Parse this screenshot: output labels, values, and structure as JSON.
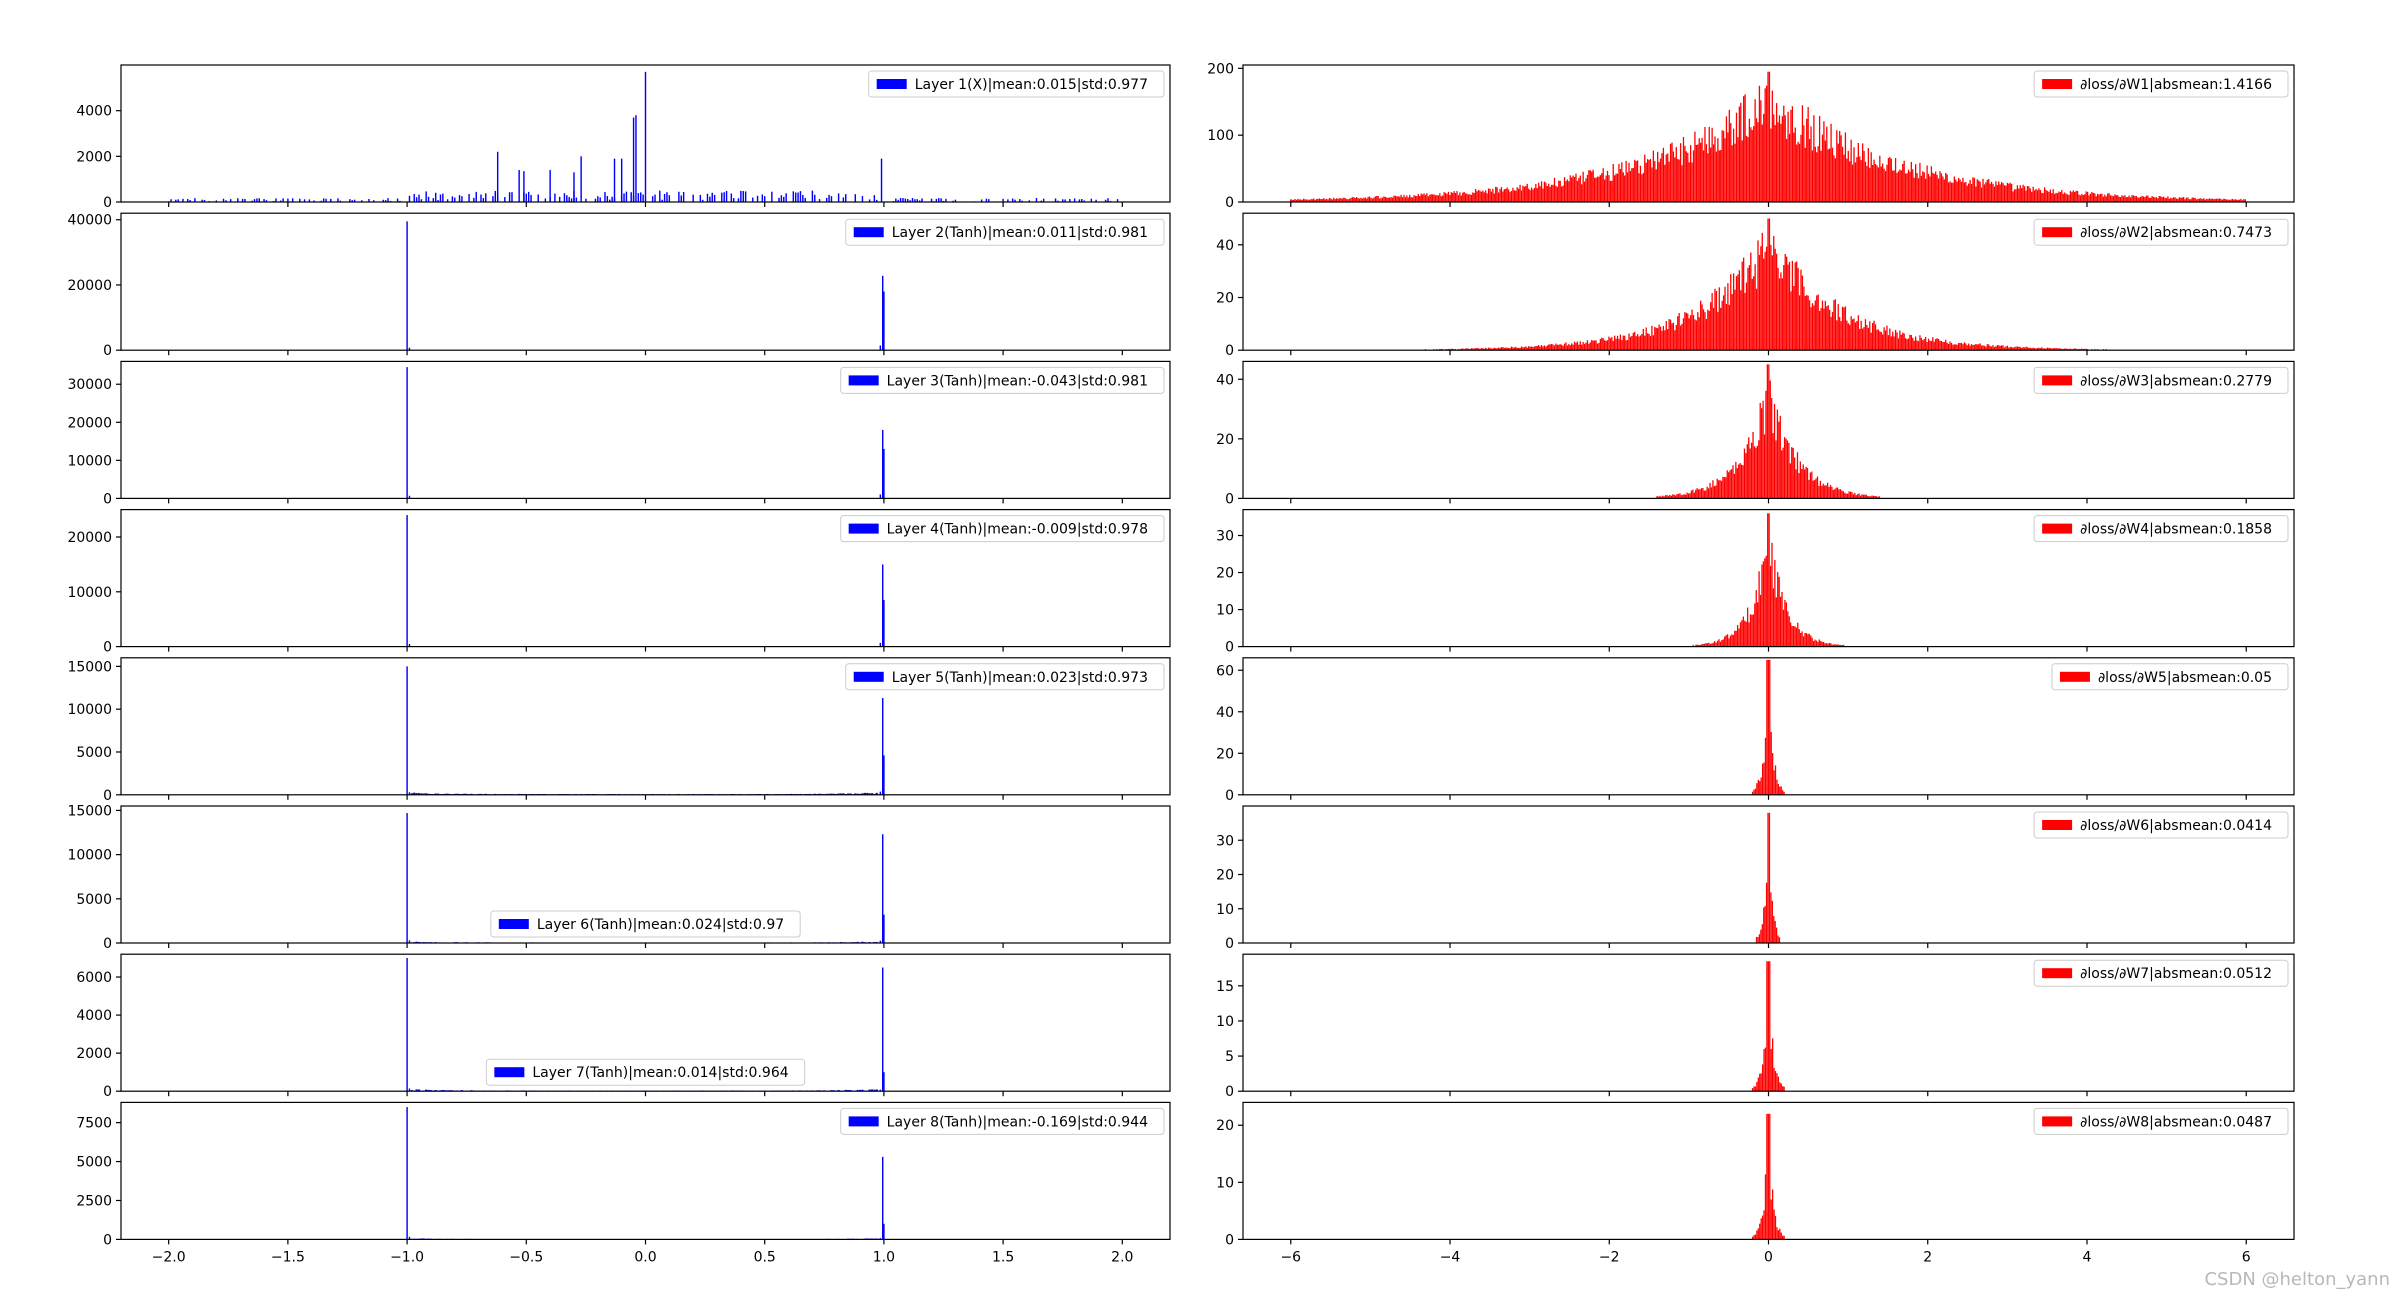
{
  "watermark": "CSDN @helton_yann",
  "colors": {
    "activation": "#0000ff",
    "gradient": "#ff0000",
    "axis": "#000000"
  },
  "chart_data": [
    {
      "type": "bar",
      "title": "",
      "legend": "Layer 1(X)|mean:0.015|std:0.977",
      "legend_position": "upper-right",
      "color": "#0000ff",
      "xlim": [
        -2.2,
        2.2
      ],
      "ylim": [
        0,
        6000
      ],
      "yticks": [
        0,
        2000,
        4000
      ],
      "yticklabels": [
        "0",
        "2000",
        "4000"
      ],
      "grid": false,
      "distribution": {
        "kind": "input",
        "spikes": [
          [
            0.0,
            5700
          ],
          [
            -0.05,
            3700
          ],
          [
            -0.04,
            3800
          ],
          [
            -0.1,
            1900
          ],
          [
            -0.13,
            1900
          ],
          [
            0.99,
            1900
          ],
          [
            -0.62,
            2200
          ],
          [
            -0.27,
            2000
          ],
          [
            -0.4,
            1400
          ],
          [
            -0.53,
            1400
          ],
          [
            -0.51,
            1350
          ],
          [
            -0.3,
            1300
          ]
        ]
      }
    },
    {
      "type": "bar",
      "title": "",
      "legend": "Layer 2(Tanh)|mean:0.011|std:0.981",
      "legend_position": "upper-right",
      "color": "#0000ff",
      "xlim": [
        -2.2,
        2.2
      ],
      "ylim": [
        0,
        42000
      ],
      "yticks": [
        0,
        20000,
        40000
      ],
      "yticklabels": [
        "0",
        "20000",
        "40000"
      ],
      "grid": false,
      "distribution": {
        "kind": "saturated",
        "neg_peak": 39500,
        "pos_peak": 22800,
        "pos_second": 18000,
        "floor": 0
      }
    },
    {
      "type": "bar",
      "title": "",
      "legend": "Layer 3(Tanh)|mean:-0.043|std:0.981",
      "legend_position": "upper-right",
      "color": "#0000ff",
      "xlim": [
        -2.2,
        2.2
      ],
      "ylim": [
        0,
        36000
      ],
      "yticks": [
        0,
        10000,
        20000,
        30000
      ],
      "yticklabels": [
        "0",
        "10000",
        "20000",
        "30000"
      ],
      "grid": false,
      "distribution": {
        "kind": "saturated",
        "neg_peak": 34500,
        "pos_peak": 18000,
        "pos_second": 13000,
        "floor": 0
      }
    },
    {
      "type": "bar",
      "title": "",
      "legend": "Layer 4(Tanh)|mean:-0.009|std:0.978",
      "legend_position": "upper-right",
      "color": "#0000ff",
      "xlim": [
        -2.2,
        2.2
      ],
      "ylim": [
        0,
        25000
      ],
      "yticks": [
        0,
        10000,
        20000
      ],
      "yticklabels": [
        "0",
        "10000",
        "20000"
      ],
      "grid": false,
      "distribution": {
        "kind": "saturated",
        "neg_peak": 24000,
        "pos_peak": 15000,
        "pos_second": 8500,
        "floor": 0
      }
    },
    {
      "type": "bar",
      "title": "",
      "legend": "Layer 5(Tanh)|mean:0.023|std:0.973",
      "legend_position": "upper-right",
      "color": "#0000ff",
      "xlim": [
        -2.2,
        2.2
      ],
      "ylim": [
        0,
        16000
      ],
      "yticks": [
        0,
        5000,
        10000,
        15000
      ],
      "yticklabels": [
        "0",
        "5000",
        "10000",
        "15000"
      ],
      "grid": false,
      "distribution": {
        "kind": "saturated",
        "neg_peak": 15000,
        "pos_peak": 11300,
        "pos_second": 4600,
        "floor": 150
      }
    },
    {
      "type": "bar",
      "title": "",
      "legend": "Layer 6(Tanh)|mean:0.024|std:0.97",
      "legend_position": "lower-center",
      "color": "#0000ff",
      "xlim": [
        -2.2,
        2.2
      ],
      "ylim": [
        0,
        15500
      ],
      "yticks": [
        0,
        5000,
        10000,
        15000
      ],
      "yticklabels": [
        "0",
        "5000",
        "10000",
        "15000"
      ],
      "grid": false,
      "distribution": {
        "kind": "saturated",
        "neg_peak": 14700,
        "pos_peak": 12300,
        "pos_second": 3200,
        "floor": 100
      }
    },
    {
      "type": "bar",
      "title": "",
      "legend": "Layer 7(Tanh)|mean:0.014|std:0.964",
      "legend_position": "lower-center",
      "color": "#0000ff",
      "xlim": [
        -2.2,
        2.2
      ],
      "ylim": [
        0,
        7200
      ],
      "yticks": [
        0,
        2000,
        4000,
        6000
      ],
      "yticklabels": [
        "0",
        "2000",
        "4000",
        "6000"
      ],
      "grid": false,
      "distribution": {
        "kind": "saturated",
        "neg_peak": 7000,
        "pos_peak": 6500,
        "pos_second": 1000,
        "floor": 60
      }
    },
    {
      "type": "bar",
      "title": "",
      "legend": "Layer 8(Tanh)|mean:-0.169|std:0.944",
      "legend_position": "upper-right",
      "color": "#0000ff",
      "xlim": [
        -2.2,
        2.2
      ],
      "ylim": [
        0,
        8800
      ],
      "yticks": [
        0,
        2500,
        5000,
        7500
      ],
      "yticklabels": [
        "0",
        "2500",
        "5000",
        "7500"
      ],
      "xticks": [
        -2.0,
        -1.5,
        -1.0,
        -0.5,
        0.0,
        0.5,
        1.0,
        1.5,
        2.0
      ],
      "xticklabels": [
        "−2.0",
        "−1.5",
        "−1.0",
        "−0.5",
        "0.0",
        "0.5",
        "1.0",
        "1.5",
        "2.0"
      ],
      "grid": false,
      "distribution": {
        "kind": "saturated",
        "neg_peak": 8500,
        "pos_peak": 5300,
        "pos_second": 1000,
        "floor": 40
      }
    },
    {
      "type": "bar",
      "title": "",
      "legend": "∂loss/∂W1|absmean:1.4166",
      "legend_position": "upper-right",
      "color": "#ff0000",
      "xlim": [
        -6.6,
        6.6
      ],
      "ylim": [
        0,
        205
      ],
      "yticks": [
        0,
        100,
        200
      ],
      "yticklabels": [
        "0",
        "100",
        "200"
      ],
      "grid": false,
      "distribution": {
        "kind": "gradient",
        "peak": 195,
        "spread": 1.6,
        "extent": 6.0
      }
    },
    {
      "type": "bar",
      "title": "",
      "legend": "∂loss/∂W2|absmean:0.7473",
      "legend_position": "upper-right",
      "color": "#ff0000",
      "xlim": [
        -6.6,
        6.6
      ],
      "ylim": [
        0,
        52
      ],
      "yticks": [
        0,
        20,
        40
      ],
      "yticklabels": [
        "0",
        "20",
        "40"
      ],
      "grid": false,
      "distribution": {
        "kind": "gradient",
        "peak": 50,
        "spread": 0.9,
        "extent": 6.0
      }
    },
    {
      "type": "bar",
      "title": "",
      "legend": "∂loss/∂W3|absmean:0.2779",
      "legend_position": "upper-right",
      "color": "#ff0000",
      "xlim": [
        -6.6,
        6.6
      ],
      "ylim": [
        0,
        46
      ],
      "yticks": [
        0,
        20,
        40
      ],
      "yticklabels": [
        "0",
        "20",
        "40"
      ],
      "grid": false,
      "distribution": {
        "kind": "gradient",
        "peak": 45,
        "spread": 0.35,
        "extent": 1.4
      }
    },
    {
      "type": "bar",
      "title": "",
      "legend": "∂loss/∂W4|absmean:0.1858",
      "legend_position": "upper-right",
      "color": "#ff0000",
      "xlim": [
        -6.6,
        6.6
      ],
      "ylim": [
        0,
        37
      ],
      "yticks": [
        0,
        10,
        20,
        30
      ],
      "yticklabels": [
        "0",
        "10",
        "20",
        "30"
      ],
      "grid": false,
      "distribution": {
        "kind": "gradient",
        "peak": 36,
        "spread": 0.22,
        "extent": 1.0
      }
    },
    {
      "type": "bar",
      "title": "",
      "legend": "∂loss/∂W5|absmean:0.05",
      "legend_position": "upper-right",
      "color": "#ff0000",
      "xlim": [
        -6.6,
        6.6
      ],
      "ylim": [
        0,
        66
      ],
      "yticks": [
        0,
        20,
        40,
        60
      ],
      "yticklabels": [
        "0",
        "20",
        "40",
        "60"
      ],
      "grid": false,
      "distribution": {
        "kind": "gradient",
        "peak": 65,
        "spread": 0.06,
        "extent": 0.2
      }
    },
    {
      "type": "bar",
      "title": "",
      "legend": "∂loss/∂W6|absmean:0.0414",
      "legend_position": "upper-right",
      "color": "#ff0000",
      "xlim": [
        -6.6,
        6.6
      ],
      "ylim": [
        0,
        40
      ],
      "yticks": [
        0,
        10,
        20,
        30
      ],
      "yticklabels": [
        "0",
        "10",
        "20",
        "30"
      ],
      "grid": false,
      "distribution": {
        "kind": "gradient",
        "peak": 38,
        "spread": 0.05,
        "extent": 0.15
      }
    },
    {
      "type": "bar",
      "title": "",
      "legend": "∂loss/∂W7|absmean:0.0512",
      "legend_position": "upper-right",
      "color": "#ff0000",
      "xlim": [
        -6.6,
        6.6
      ],
      "ylim": [
        0,
        19.5
      ],
      "yticks": [
        0,
        5,
        10,
        15
      ],
      "yticklabels": [
        "0",
        "5",
        "10",
        "15"
      ],
      "grid": false,
      "distribution": {
        "kind": "gradient",
        "peak": 18.5,
        "spread": 0.06,
        "extent": 0.2
      }
    },
    {
      "type": "bar",
      "title": "",
      "legend": "∂loss/∂W8|absmean:0.0487",
      "legend_position": "upper-right",
      "color": "#ff0000",
      "xlim": [
        -6.6,
        6.6
      ],
      "ylim": [
        0,
        24
      ],
      "yticks": [
        0,
        10,
        20
      ],
      "yticklabels": [
        "0",
        "10",
        "20"
      ],
      "xticks": [
        -6,
        -4,
        -2,
        0,
        2,
        4,
        6
      ],
      "xticklabels": [
        "−6",
        "−4",
        "−2",
        "0",
        "2",
        "4",
        "6"
      ],
      "grid": false,
      "distribution": {
        "kind": "gradient",
        "peak": 22,
        "spread": 0.06,
        "extent": 0.2
      }
    }
  ]
}
